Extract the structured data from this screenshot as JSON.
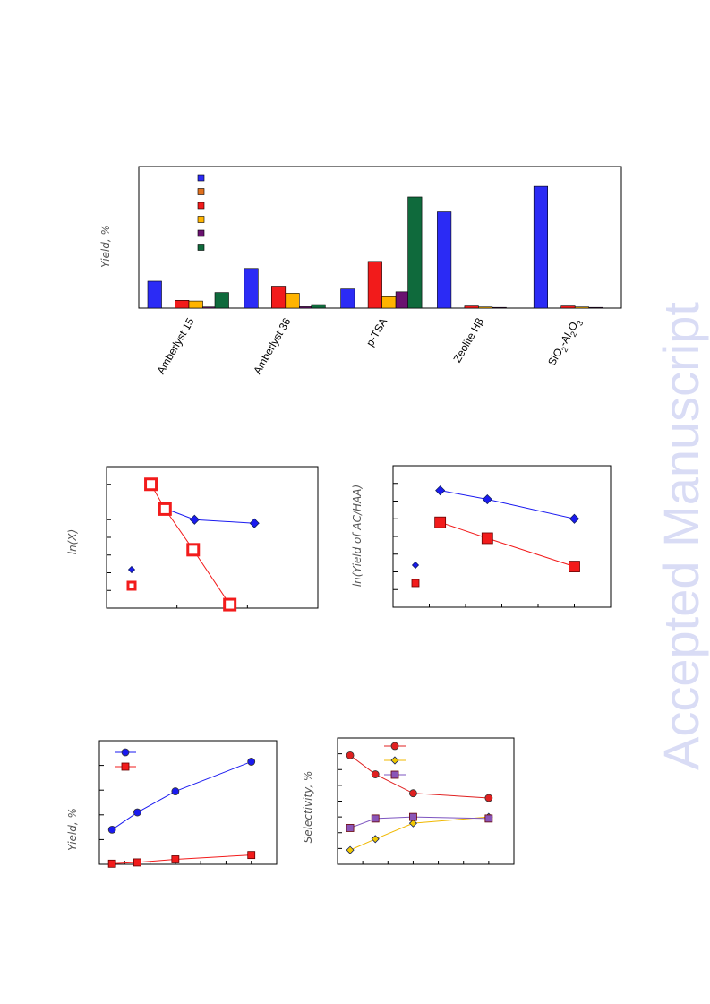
{
  "watermark": "Accepted Manuscript",
  "chart_data": [
    {
      "type": "bar",
      "ylabel": "Yield, %",
      "categories": [
        "Amberlyst 15",
        "Amberlyst 36",
        "p-TSA",
        "Zeolite Hβ",
        "SiO2-Al2O3"
      ],
      "category_labels": [
        {
          "main": "Amberlyst 15"
        },
        {
          "main": "Amberlyst 36"
        },
        {
          "main": "p-TSA"
        },
        {
          "main": "Zeolite Hβ"
        },
        {
          "parts": [
            "SiO",
            "2",
            "-Al",
            "2",
            "O",
            "3"
          ]
        }
      ],
      "ylim": [
        0,
        100
      ],
      "series": [
        {
          "color": "#2b2bf5",
          "values": [
            19,
            28,
            13.5,
            68,
            86
          ]
        },
        {
          "color": "#e0701e",
          "values": [
            0,
            0,
            0,
            0,
            0
          ]
        },
        {
          "color": "#f21b1b",
          "values": [
            5.5,
            15.5,
            33,
            1.5,
            1.5
          ]
        },
        {
          "color": "#ffb400",
          "values": [
            5,
            10.5,
            8,
            0.8,
            0.8
          ]
        },
        {
          "color": "#6a1270",
          "values": [
            0.8,
            1,
            11.5,
            0.5,
            0.5
          ]
        },
        {
          "color": "#0f6a3c",
          "values": [
            11,
            2.5,
            78.5,
            0,
            0
          ]
        }
      ],
      "grid": false,
      "legend": "top-left"
    },
    {
      "type": "line",
      "ylabel": "ln(X)",
      "xlim": [
        0,
        3
      ],
      "ylim": [
        0,
        8
      ],
      "legend": "bottom-left",
      "series": [
        {
          "color": "#1a1af0",
          "marker": "diamond",
          "x": [
            0.85,
            1.25,
            2.1
          ],
          "y": [
            5.6,
            5.0,
            4.8
          ]
        },
        {
          "color": "#f21b1b",
          "marker": "square-open",
          "x": [
            0.63,
            0.83,
            1.23,
            1.75
          ],
          "y": [
            7.0,
            5.6,
            3.3,
            0.2
          ]
        }
      ]
    },
    {
      "type": "line",
      "ylabel": "ln(Yield of AC/HAA)",
      "xlim": [
        0,
        6
      ],
      "ylim": [
        0,
        8
      ],
      "legend": "bottom-left",
      "series": [
        {
          "color": "#1a1af0",
          "marker": "diamond",
          "x": [
            1.3,
            2.6,
            5.0
          ],
          "y": [
            6.6,
            6.1,
            5.0
          ]
        },
        {
          "color": "#f21b1b",
          "marker": "square",
          "x": [
            1.3,
            2.6,
            5.0
          ],
          "y": [
            4.8,
            3.9,
            2.3
          ]
        }
      ]
    },
    {
      "type": "line",
      "ylabel": "Yield, %",
      "xlim": [
        0,
        7
      ],
      "ylim": [
        0,
        100
      ],
      "legend": "top-left",
      "series": [
        {
          "color": "#1a1af0",
          "marker": "circle",
          "x": [
            0.5,
            1.5,
            3.0,
            6.0
          ],
          "y": [
            28,
            42,
            59,
            83
          ]
        },
        {
          "color": "#f21b1b",
          "marker": "square",
          "x": [
            0.5,
            1.5,
            3.0,
            6.0
          ],
          "y": [
            0.5,
            1.5,
            4,
            7.5
          ]
        }
      ]
    },
    {
      "type": "line",
      "ylabel": "Selectivity, %",
      "xlim": [
        0,
        7
      ],
      "ylim": [
        0,
        80
      ],
      "legend": "top-center",
      "series": [
        {
          "color": "#e02020",
          "fill": "#e02020",
          "marker": "circle",
          "x": [
            0.5,
            1.5,
            3.0,
            6.0
          ],
          "y": [
            69,
            57,
            45,
            42
          ]
        },
        {
          "color": "#f0b800",
          "fill": "#f0c800",
          "marker": "diamond",
          "x": [
            0.5,
            1.5,
            3.0,
            6.0
          ],
          "y": [
            9,
            16,
            26,
            30
          ]
        },
        {
          "color": "#7d55c0",
          "fill": "#8a55b8",
          "marker": "square",
          "x": [
            0.5,
            1.5,
            3.0,
            6.0
          ],
          "y": [
            23,
            29,
            30,
            29
          ]
        }
      ]
    }
  ]
}
